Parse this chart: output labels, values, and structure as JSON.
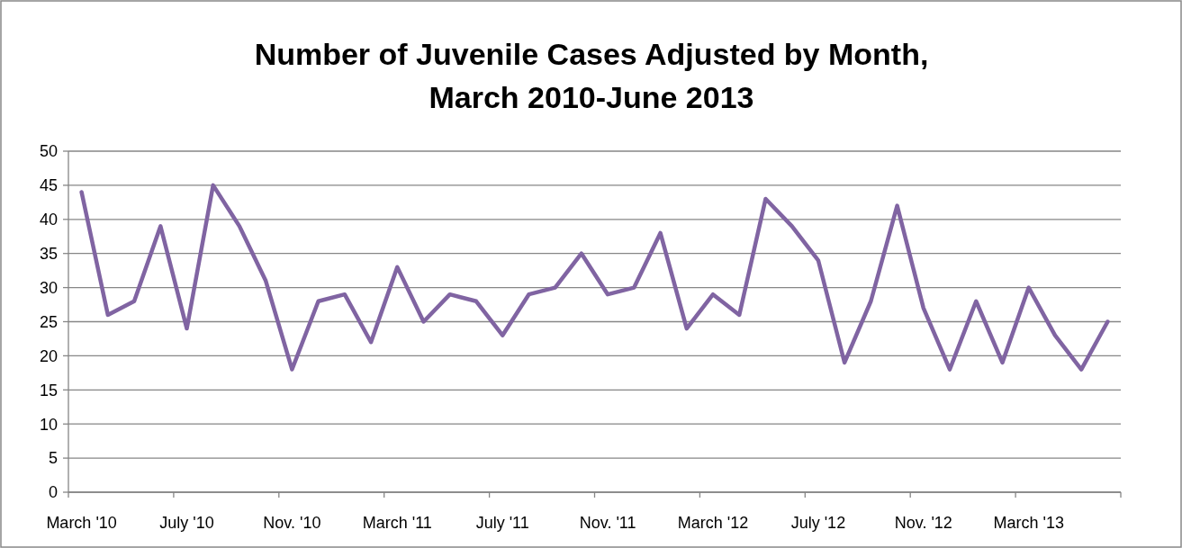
{
  "chart_data": {
    "type": "line",
    "title": "Number of Juvenile Cases Adjusted by Month,\nMarch 2010-June 2013",
    "categories": [
      "March '10",
      null,
      null,
      null,
      "July '10",
      null,
      null,
      null,
      "Nov. '10",
      null,
      null,
      null,
      "March '11",
      null,
      null,
      null,
      "July '11",
      null,
      null,
      null,
      "Nov. '11",
      null,
      null,
      null,
      "March '12",
      null,
      null,
      null,
      "July '12",
      null,
      null,
      null,
      "Nov. '12",
      null,
      null,
      null,
      "March '13",
      null,
      null,
      null
    ],
    "series": [
      {
        "color": "#8064a2",
        "values": [
          44,
          26,
          28,
          39,
          24,
          45,
          39,
          31,
          18,
          28,
          29,
          22,
          33,
          25,
          29,
          28,
          23,
          29,
          30,
          35,
          29,
          30,
          38,
          24,
          29,
          26,
          43,
          39,
          34,
          19,
          28,
          42,
          27,
          18,
          28,
          19,
          30,
          23,
          18,
          25
        ]
      }
    ],
    "ylim": [
      0,
      50
    ],
    "yticks": [
      0,
      5,
      10,
      15,
      20,
      25,
      30,
      35,
      40,
      45,
      50
    ],
    "grid": "y",
    "marker": "none",
    "line_style": "solid"
  }
}
